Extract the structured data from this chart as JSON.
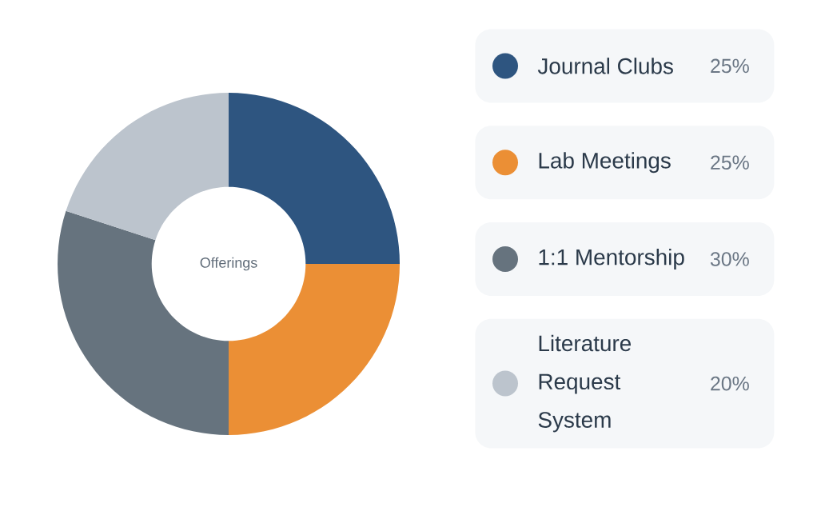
{
  "chart_data": {
    "type": "donut",
    "title": "Offerings",
    "categories": [
      "Journal Clubs",
      "Lab Meetings",
      "1:1 Mentorship",
      "Literature Request System"
    ],
    "values": [
      25,
      25,
      30,
      20
    ],
    "value_labels": [
      "25%",
      "25%",
      "30%",
      "20%"
    ],
    "colors": [
      "#2e5580",
      "#eb8f35",
      "#66737e",
      "#bcc4cd"
    ],
    "legend": "right"
  }
}
